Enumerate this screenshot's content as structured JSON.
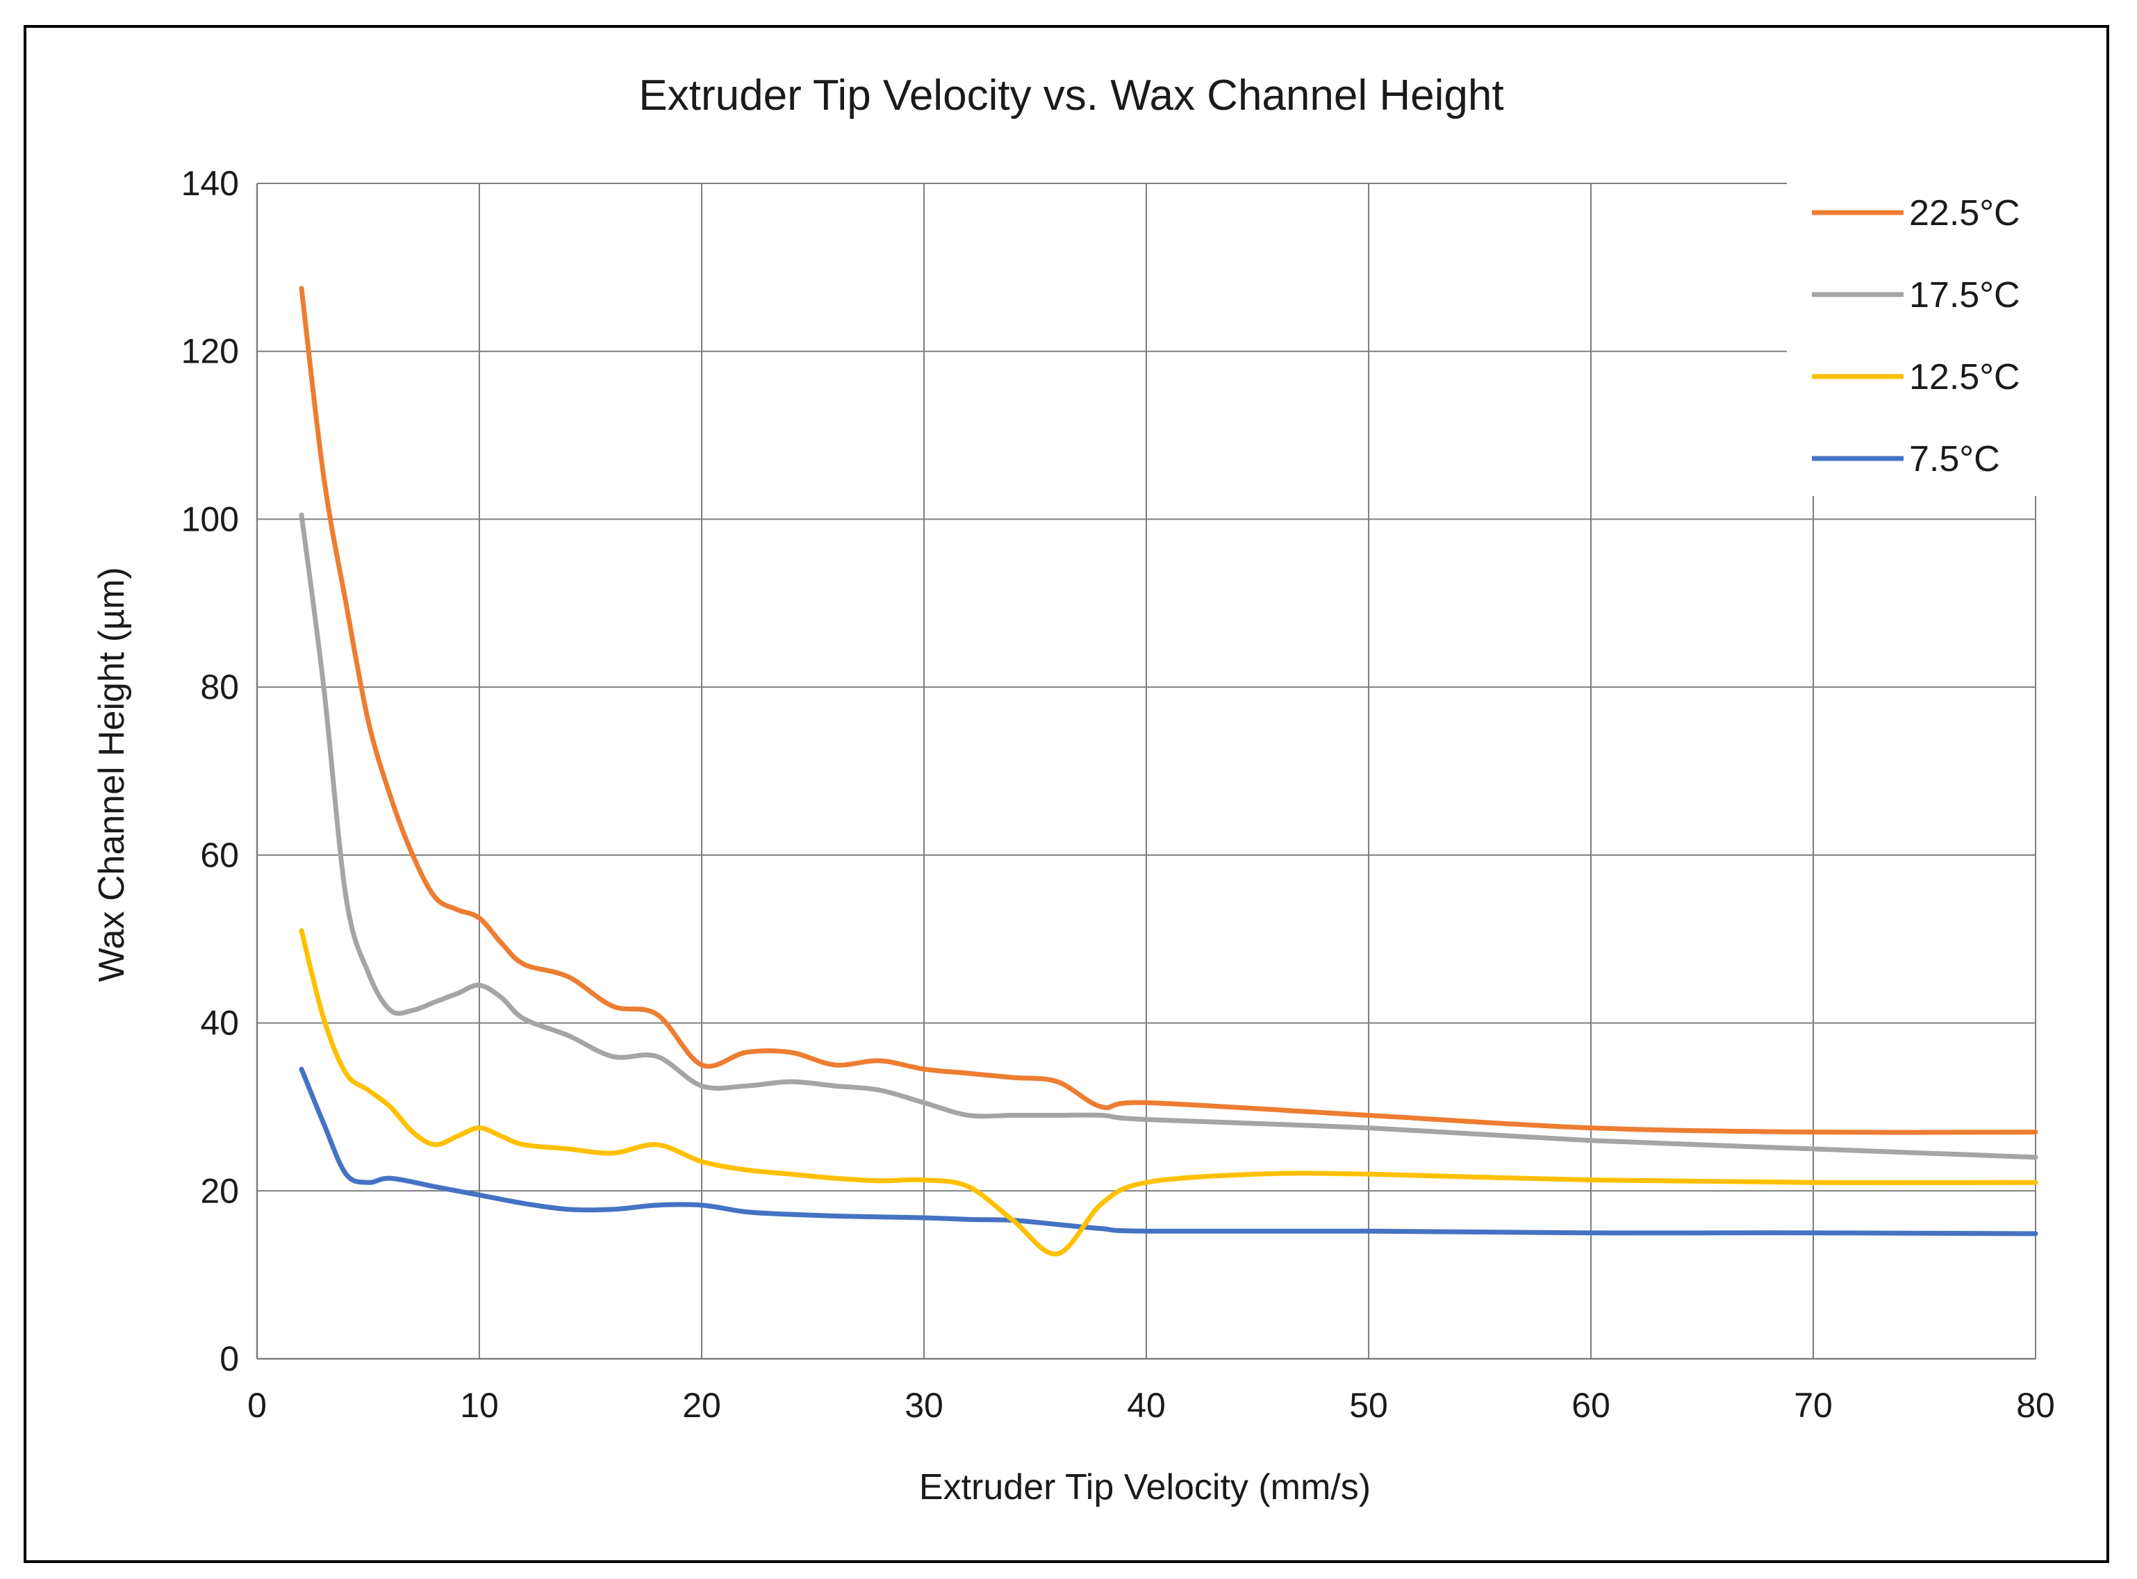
{
  "chart_data": {
    "type": "line",
    "title": "Extruder Tip Velocity vs. Wax Channel Height",
    "xlabel": "Extruder Tip Velocity (mm/s)",
    "ylabel": "Wax Channel Height (µm)",
    "xlim": [
      0,
      80
    ],
    "ylim": [
      0,
      140
    ],
    "xticks": [
      0,
      10,
      20,
      30,
      40,
      50,
      60,
      70,
      80
    ],
    "yticks": [
      0,
      20,
      40,
      60,
      80,
      100,
      120,
      140
    ],
    "grid": true,
    "legend_position": "top-right",
    "series": [
      {
        "name": "22.5°C",
        "color": "#ED7D31",
        "x": [
          2,
          3,
          4,
          5,
          6,
          7,
          8,
          9,
          10,
          11,
          12,
          14,
          16,
          18,
          20,
          22,
          24,
          26,
          28,
          30,
          32,
          34,
          36,
          38,
          40,
          50,
          60,
          70,
          80
        ],
        "y": [
          127.5,
          105,
          90,
          76,
          67,
          60,
          55,
          53.5,
          52.5,
          49.5,
          47,
          45.5,
          42,
          41,
          35,
          36.5,
          36.5,
          35,
          35.5,
          34.5,
          34,
          33.5,
          33,
          30,
          30.5,
          29,
          27.5,
          27,
          27
        ]
      },
      {
        "name": "17.5°C",
        "color": "#A5A5A5",
        "x": [
          2,
          3,
          4,
          5,
          6,
          7,
          8,
          9,
          10,
          11,
          12,
          14,
          16,
          18,
          20,
          22,
          24,
          26,
          28,
          30,
          32,
          34,
          36,
          38,
          40,
          50,
          60,
          70,
          80
        ],
        "y": [
          100.5,
          80,
          55,
          46,
          41.5,
          41.5,
          42.5,
          43.5,
          44.5,
          43,
          40.5,
          38.5,
          36,
          36,
          32.5,
          32.5,
          33,
          32.5,
          32,
          30.5,
          29,
          29,
          29,
          29,
          28.5,
          27.5,
          26,
          25,
          24
        ]
      },
      {
        "name": "12.5°C",
        "color": "#FFC000",
        "x": [
          2,
          3,
          4,
          5,
          6,
          7,
          8,
          9,
          10,
          11,
          12,
          14,
          16,
          18,
          20,
          22,
          24,
          26,
          28,
          30,
          32,
          34,
          36,
          38,
          40,
          45,
          50,
          60,
          70,
          80
        ],
        "y": [
          51,
          40.5,
          34,
          32,
          30,
          27,
          25.5,
          26.5,
          27.5,
          26.5,
          25.5,
          25,
          24.5,
          25.5,
          23.5,
          22.5,
          22,
          21.5,
          21.2,
          21.3,
          20.5,
          16.5,
          12.5,
          18.5,
          21,
          22,
          22,
          21.3,
          21,
          21
        ]
      },
      {
        "name": "7.5°C",
        "color": "#4472C4",
        "x": [
          2,
          3,
          4,
          5,
          6,
          8,
          10,
          12,
          14,
          16,
          18,
          20,
          22,
          24,
          26,
          28,
          30,
          32,
          34,
          36,
          38,
          40,
          50,
          60,
          70,
          80
        ],
        "y": [
          34.5,
          28,
          22,
          21,
          21.5,
          20.5,
          19.5,
          18.5,
          17.8,
          17.8,
          18.3,
          18.3,
          17.5,
          17.2,
          17.0,
          16.9,
          16.8,
          16.6,
          16.5,
          16.0,
          15.5,
          15.2,
          15.2,
          15.0,
          15.0,
          14.9
        ]
      }
    ]
  }
}
